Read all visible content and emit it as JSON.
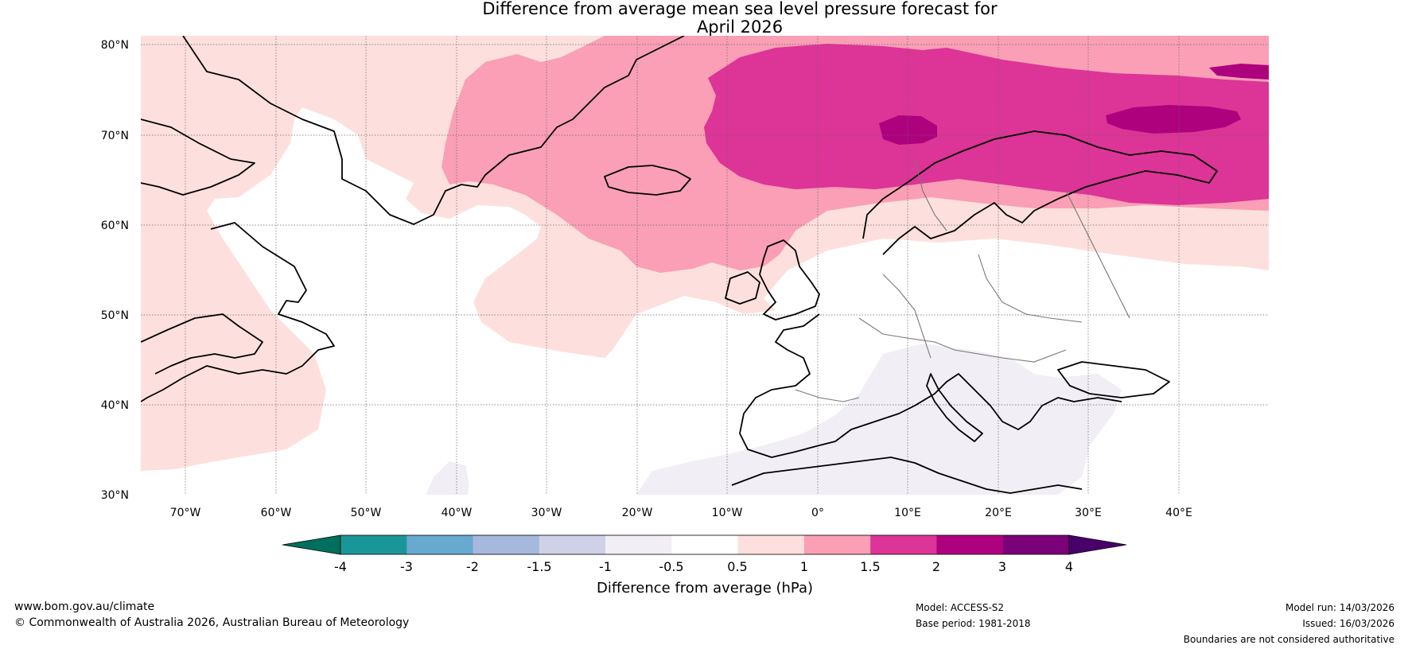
{
  "title": {
    "line1": "Difference from average mean sea level pressure forecast for",
    "line2": "April 2026"
  },
  "latitude_labels": [
    "80°N",
    "70°N",
    "60°N",
    "50°N",
    "40°N",
    "30°N"
  ],
  "longitude_labels": [
    "70°W",
    "60°W",
    "50°W",
    "40°W",
    "30°W",
    "20°W",
    "10°W",
    "0°",
    "10°E",
    "20°E",
    "30°E",
    "40°E"
  ],
  "colorbar": {
    "title": "Difference from average (hPa)",
    "ticks": [
      "-4",
      "-3",
      "-2",
      "-1.5",
      "-1",
      "-0.5",
      "0.5",
      "1",
      "1.5",
      "2",
      "3",
      "4"
    ],
    "under_color": "#00705e",
    "over_color": "#4a006a",
    "colors": [
      "#1a9698",
      "#67a9cf",
      "#a6b8dc",
      "#cfd1e6",
      "#f2eef5",
      "#ffffff",
      "#fde0dd",
      "#fa9fb5",
      "#dd3497",
      "#ae017e",
      "#7a0177"
    ]
  },
  "field_colors": {
    "p05_1": "#fde0dd",
    "p1_15": "#fa9fb5",
    "p15_2": "#dd3497",
    "p2_3": "#ae017e",
    "m1_05": "#f2eef5"
  },
  "footer": {
    "website": "www.bom.gov.au/climate",
    "copyright": "© Commonwealth of Australia 2026, Australian Bureau of Meteorology",
    "model": "Model: ACCESS-S2",
    "base_period": "Base period: 1981-2018",
    "model_run": "Model run: 14/03/2026",
    "issued": "Issued: 16/03/2026",
    "disclaimer": "Boundaries are not considered authoritative"
  }
}
